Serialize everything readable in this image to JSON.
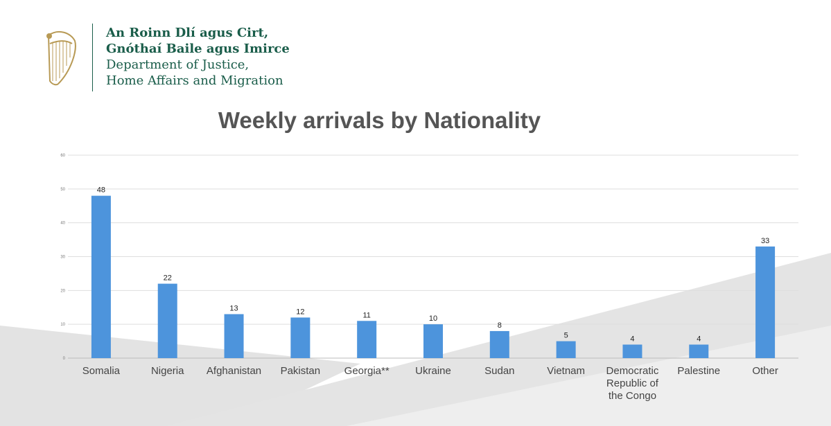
{
  "header": {
    "org_line1": "An Roinn Dlí agus Cirt,",
    "org_line2": "Gnóthaí Baile agus Imirce",
    "org_line3": "Department of Justice,",
    "org_line4": "Home Affairs and Migration",
    "brand_color": "#1a5d4a",
    "logo_icon": "harp-icon"
  },
  "chart_data": {
    "type": "bar",
    "title": "Weekly arrivals by Nationality",
    "categories": [
      [
        "Somalia"
      ],
      [
        "Nigeria"
      ],
      [
        "Afghanistan"
      ],
      [
        "Pakistan"
      ],
      [
        "Georgia**"
      ],
      [
        "Ukraine"
      ],
      [
        "Sudan"
      ],
      [
        "Vietnam"
      ],
      [
        "Democratic",
        "Republic of",
        "the Congo"
      ],
      [
        "Palestine"
      ],
      [
        "Other"
      ]
    ],
    "values": [
      48,
      22,
      13,
      12,
      11,
      10,
      8,
      5,
      4,
      4,
      33
    ],
    "yticks": [
      0,
      10,
      20,
      30,
      40,
      50,
      60
    ],
    "ylim": [
      0,
      60
    ],
    "grid": true,
    "legend": "none",
    "bar_color": "#4d94dc",
    "xlabel": "",
    "ylabel": ""
  }
}
